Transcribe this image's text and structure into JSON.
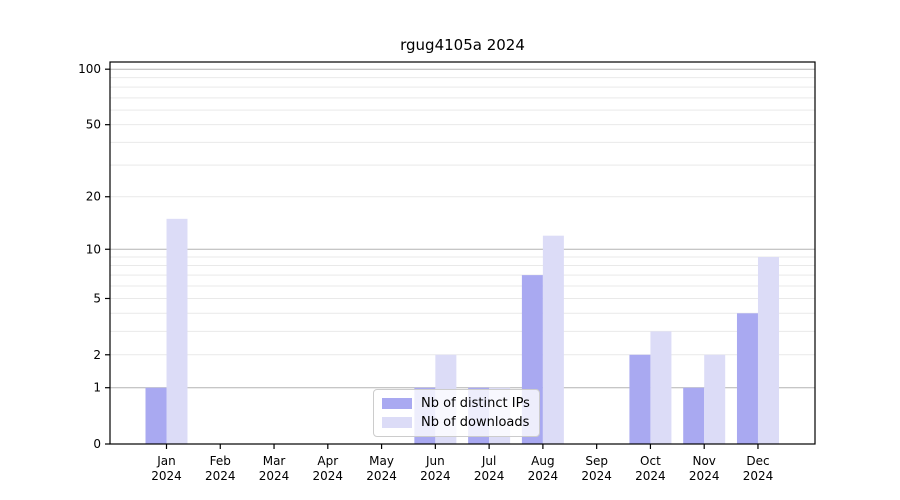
{
  "chart_data": {
    "type": "bar",
    "title": "rgug4105a 2024",
    "categories": [
      "Jan",
      "Feb",
      "Mar",
      "Apr",
      "May",
      "Jun",
      "Jul",
      "Aug",
      "Sep",
      "Oct",
      "Nov",
      "Dec"
    ],
    "x_tick_year": "2024",
    "series": [
      {
        "name": "Nb of distinct IPs",
        "color": "#a9a9f1",
        "values": [
          1,
          0,
          0,
          0,
          0,
          1,
          1,
          7,
          0,
          2,
          1,
          4
        ]
      },
      {
        "name": "Nb of downloads",
        "color": "#dcdcf7",
        "values": [
          15,
          0,
          0,
          0,
          0,
          2,
          1,
          12,
          0,
          3,
          2,
          9
        ]
      }
    ],
    "yscale": "log1p",
    "y_ticks": [
      0,
      1,
      2,
      5,
      10,
      20,
      50,
      100
    ],
    "major_gridlines": [
      1,
      10,
      100
    ],
    "minor_gridlines": [
      2,
      3,
      4,
      5,
      6,
      7,
      8,
      9,
      20,
      30,
      40,
      50,
      60,
      70,
      80,
      90
    ],
    "ylim": [
      0,
      109
    ],
    "grid": true,
    "legend_position": "lower center",
    "colors": {
      "axis": "#000000",
      "major_grid": "#b4b4b4",
      "minor_grid": "#e9e9e9",
      "text": "#000000"
    }
  }
}
